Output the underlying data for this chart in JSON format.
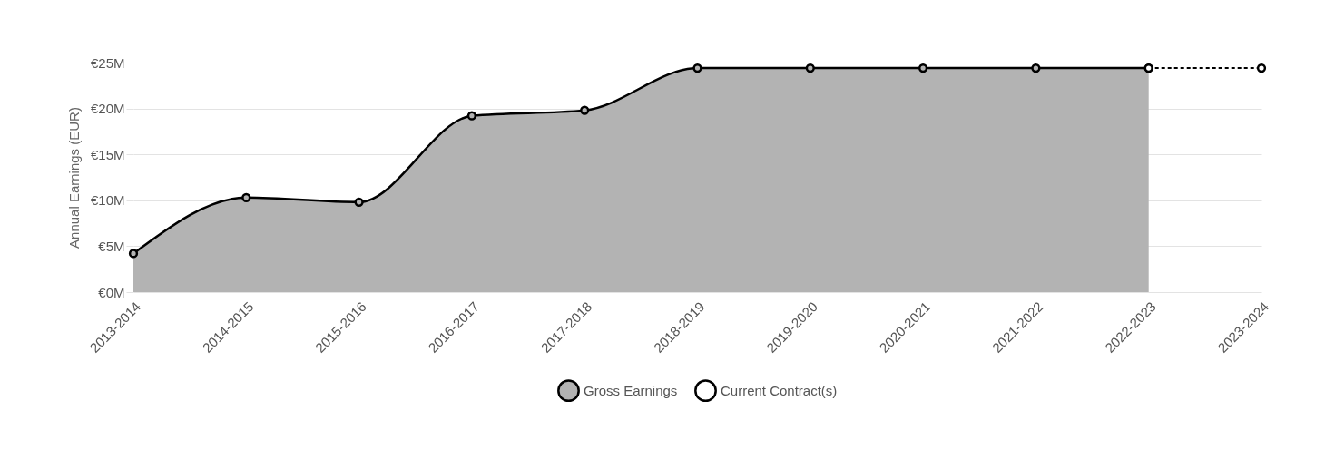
{
  "chart_data": {
    "type": "area",
    "ylabel": "Annual Earnings (EUR)",
    "categories": [
      "2013-2014",
      "2014-2015",
      "2015-2016",
      "2016-2017",
      "2017-2018",
      "2018-2019",
      "2019-2020",
      "2020-2021",
      "2021-2022",
      "2022-2023",
      "2023-2024"
    ],
    "series": [
      {
        "name": "Gross Earnings",
        "color": "#b3b3b3",
        "line_style": "solid",
        "values": [
          4.2,
          10.3,
          9.8,
          19.2,
          19.8,
          24.4,
          24.4,
          24.4,
          24.4,
          24.4,
          null
        ]
      },
      {
        "name": "Current Contract(s)",
        "type": "line",
        "color": "#ffffff",
        "line_style": "dashed",
        "values": [
          null,
          null,
          null,
          null,
          null,
          null,
          null,
          null,
          null,
          24.4,
          24.4
        ]
      }
    ],
    "ylim": [
      0,
      25
    ],
    "yticks": [
      {
        "value": 0,
        "label": "€0M"
      },
      {
        "value": 5,
        "label": "€5M"
      },
      {
        "value": 10,
        "label": "€10M"
      },
      {
        "value": 15,
        "label": "€15M"
      },
      {
        "value": 20,
        "label": "€20M"
      },
      {
        "value": 25,
        "label": "€25M"
      }
    ],
    "grid": "y",
    "legend": "bottom",
    "marker": "circle"
  }
}
